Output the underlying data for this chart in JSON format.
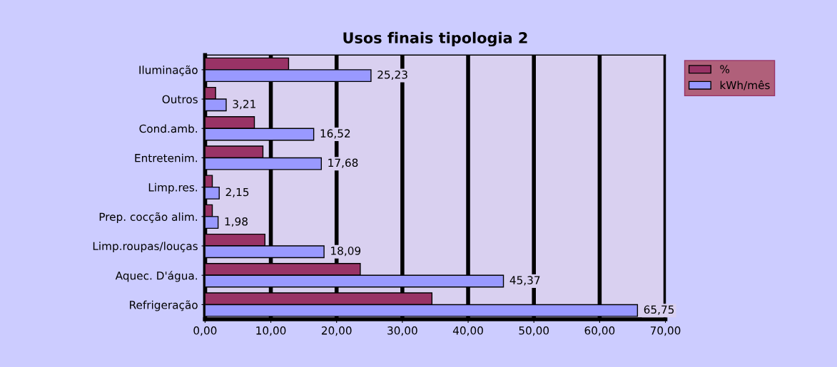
{
  "chart_data": {
    "type": "bar",
    "orientation": "horizontal",
    "title": "Usos finais tipologia 2",
    "categories": [
      "Iluminação",
      "Outros",
      "Cond.amb.",
      "Entretenim.",
      "Limp.res.",
      "Prep. cocção alim.",
      "Limp.roupas/louças",
      "Aquec. D'água.",
      "Refrigeração"
    ],
    "series": [
      {
        "name": "%",
        "color": "#993366",
        "values": [
          12.7,
          1.6,
          7.5,
          8.8,
          1.1,
          1.1,
          9.1,
          23.6,
          34.5
        ]
      },
      {
        "name": "kWh/mês",
        "color": "#9999ff",
        "values": [
          25.23,
          3.21,
          16.52,
          17.68,
          2.15,
          1.98,
          18.09,
          45.37,
          65.75
        ],
        "value_labels": [
          "25,23",
          "3,21",
          "16,52",
          "17,68",
          "2,15",
          "1,98",
          "18,09",
          "45,37",
          "65,75"
        ]
      }
    ],
    "xlim": [
      0,
      70
    ],
    "xticks": [
      {
        "value": 0,
        "label": "0,00"
      },
      {
        "value": 10,
        "label": "10,00"
      },
      {
        "value": 20,
        "label": "20,00"
      },
      {
        "value": 30,
        "label": "30,00"
      },
      {
        "value": 40,
        "label": "40,00"
      },
      {
        "value": 50,
        "label": "50,00"
      },
      {
        "value": 60,
        "label": "60,00"
      },
      {
        "value": 70,
        "label": "70,00"
      }
    ],
    "grid": "x",
    "legend": "right"
  }
}
